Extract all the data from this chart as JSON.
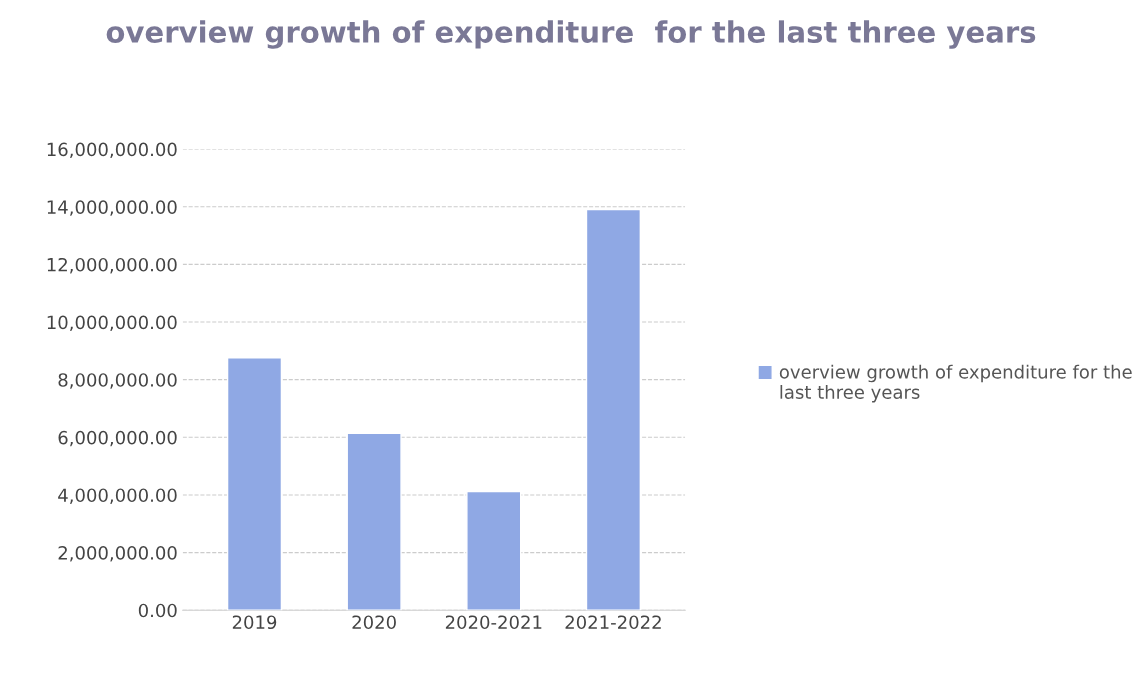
{
  "chart_data": {
    "type": "bar",
    "title": "overview growth of expenditure  for the last three years",
    "categories": [
      "2019",
      "2020",
      "2020-2021",
      "2021-2022"
    ],
    "series": [
      {
        "name": "overview growth of expenditure for the last three years",
        "color": "#8fa8e4",
        "values": [
          8760000,
          6140000,
          4120000,
          13900000
        ]
      }
    ],
    "ylim": [
      0,
      16000000
    ],
    "yticks": [
      {
        "value": 0,
        "label": "0.00"
      },
      {
        "value": 2000000,
        "label": "2,000,000.00"
      },
      {
        "value": 4000000,
        "label": "4,000,000.00"
      },
      {
        "value": 6000000,
        "label": "6,000,000.00"
      },
      {
        "value": 8000000,
        "label": "8,000,000.00"
      },
      {
        "value": 10000000,
        "label": "10,000,000.00"
      },
      {
        "value": 12000000,
        "label": "12,000,000.00"
      },
      {
        "value": 14000000,
        "label": "14,000,000.00"
      },
      {
        "value": 16000000,
        "label": "16,000,000.00"
      }
    ],
    "grid": "y",
    "legend": "right"
  }
}
